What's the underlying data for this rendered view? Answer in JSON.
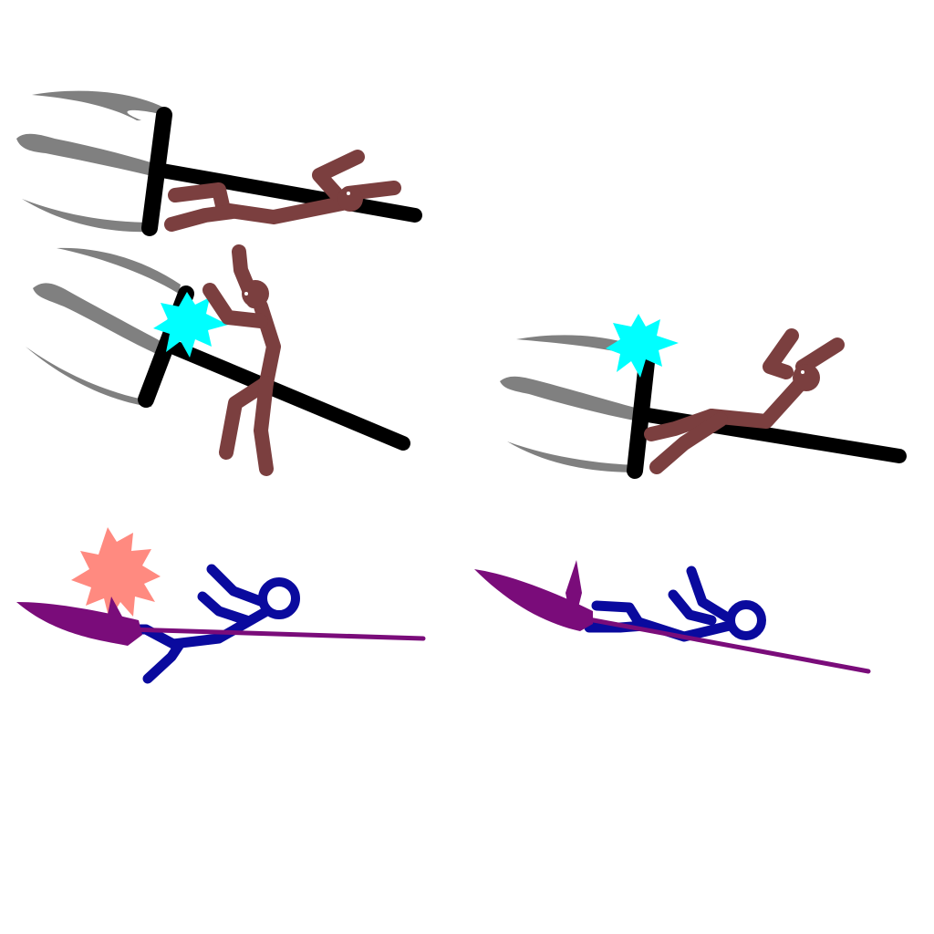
{
  "sprite_sheet": {
    "background": "#ffffff",
    "frames": [
      {
        "name": "trident-grab-frame-1",
        "character": "brown-stickman",
        "weapon": "trident",
        "effect": "none"
      },
      {
        "name": "trident-grab-frame-2",
        "character": "brown-stickman",
        "weapon": "trident",
        "effect": "cyan-energy-burst"
      },
      {
        "name": "trident-grab-frame-3",
        "character": "brown-stickman",
        "weapon": "trident",
        "effect": "cyan-energy-burst"
      },
      {
        "name": "spear-ride-frame-1",
        "character": "blue-stickman",
        "weapon": "purple-spear",
        "effect": "pink-energy-burst"
      },
      {
        "name": "spear-ride-frame-2",
        "character": "blue-stickman",
        "weapon": "purple-spear",
        "effect": "none"
      }
    ]
  },
  "colors": {
    "trident_shaft": "#000000",
    "trident_prong": "#808080",
    "brown_stickman": "#7b3f3f",
    "blue_stickman": "#0a0a9e",
    "purple_spear": "#7a0c7a",
    "cyan_burst": "#00ffff",
    "pink_burst": "#ff8a80"
  }
}
